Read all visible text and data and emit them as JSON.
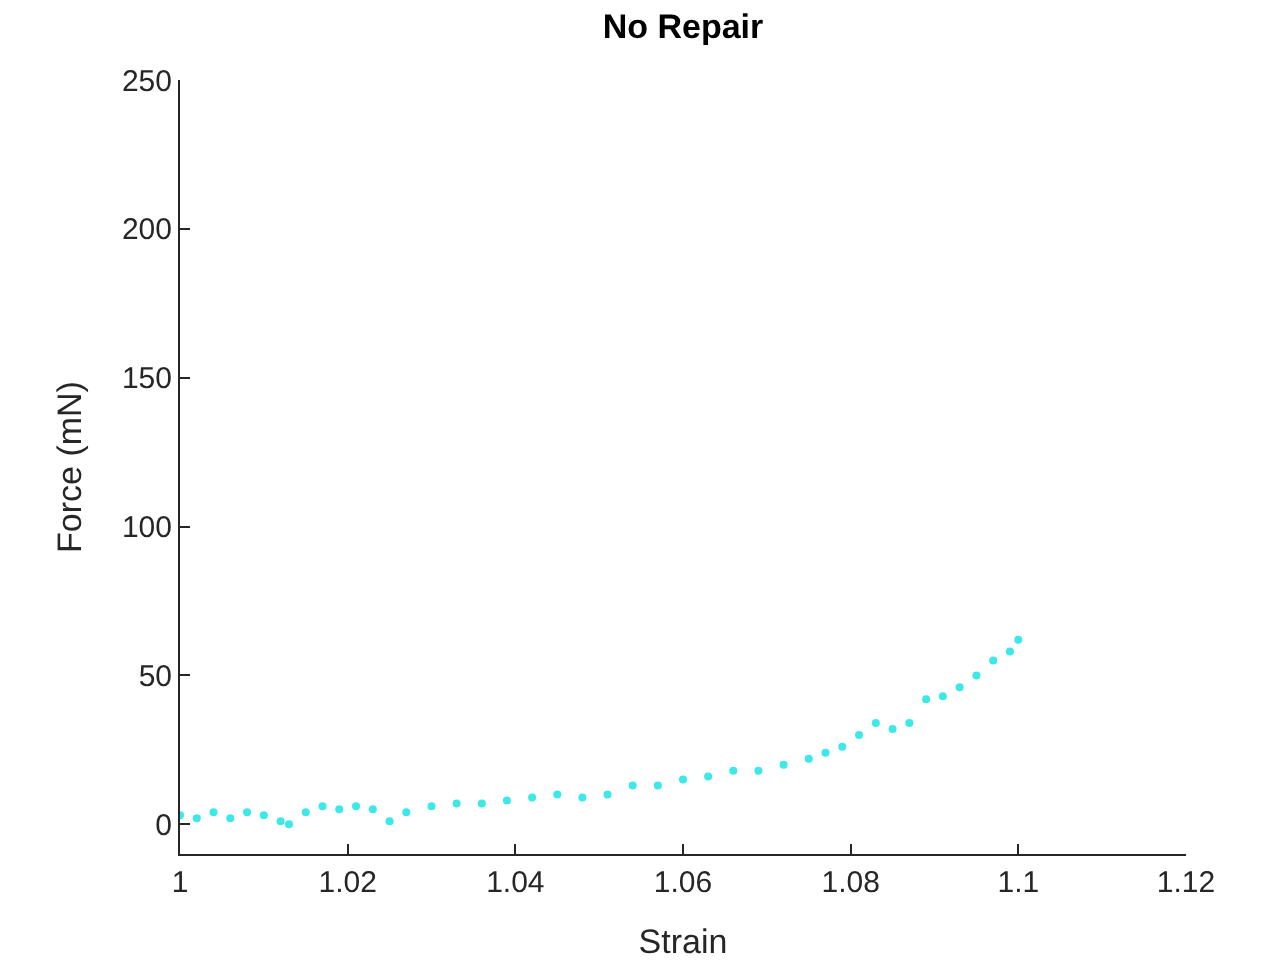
{
  "chart_data": {
    "type": "scatter",
    "title": "No Repair",
    "xlabel": "Strain",
    "ylabel": "Force (mN)",
    "xlim": [
      1,
      1.12
    ],
    "xticks": [
      1,
      {
        "value": 1.02,
        "label": "1.02"
      },
      {
        "value": 1.04,
        "label": "1.04"
      },
      {
        "value": 1.06,
        "label": "1.06"
      },
      {
        "value": 1.08,
        "label": "1.08"
      },
      {
        "value": 1.1,
        "label": "1.1"
      },
      {
        "value": 1.12,
        "label": "1.12"
      }
    ],
    "ylim": [
      -10,
      250
    ],
    "yticks": [
      0,
      50,
      100,
      150,
      200,
      250
    ],
    "marker": "circle",
    "series": [
      {
        "color": "#3ce8e8",
        "x": [
          1.0,
          1.002,
          1.004,
          1.006,
          1.008,
          1.01,
          1.012,
          1.013,
          1.015,
          1.017,
          1.019,
          1.021,
          1.023,
          1.025,
          1.027,
          1.03,
          1.033,
          1.036,
          1.039,
          1.042,
          1.045,
          1.048,
          1.051,
          1.054,
          1.057,
          1.06,
          1.063,
          1.066,
          1.069,
          1.072,
          1.075,
          1.077,
          1.079,
          1.081,
          1.083,
          1.085,
          1.087,
          1.089,
          1.091,
          1.093,
          1.095,
          1.097,
          1.099,
          1.1
        ],
        "values": [
          3,
          2,
          4,
          2,
          4,
          3,
          1,
          0,
          4,
          6,
          5,
          6,
          5,
          1,
          4,
          6,
          7,
          7,
          8,
          9,
          10,
          9,
          10,
          13,
          13,
          15,
          16,
          18,
          18,
          20,
          22,
          24,
          26,
          30,
          34,
          32,
          34,
          42,
          43,
          46,
          50,
          55,
          58,
          62
        ]
      }
    ]
  }
}
